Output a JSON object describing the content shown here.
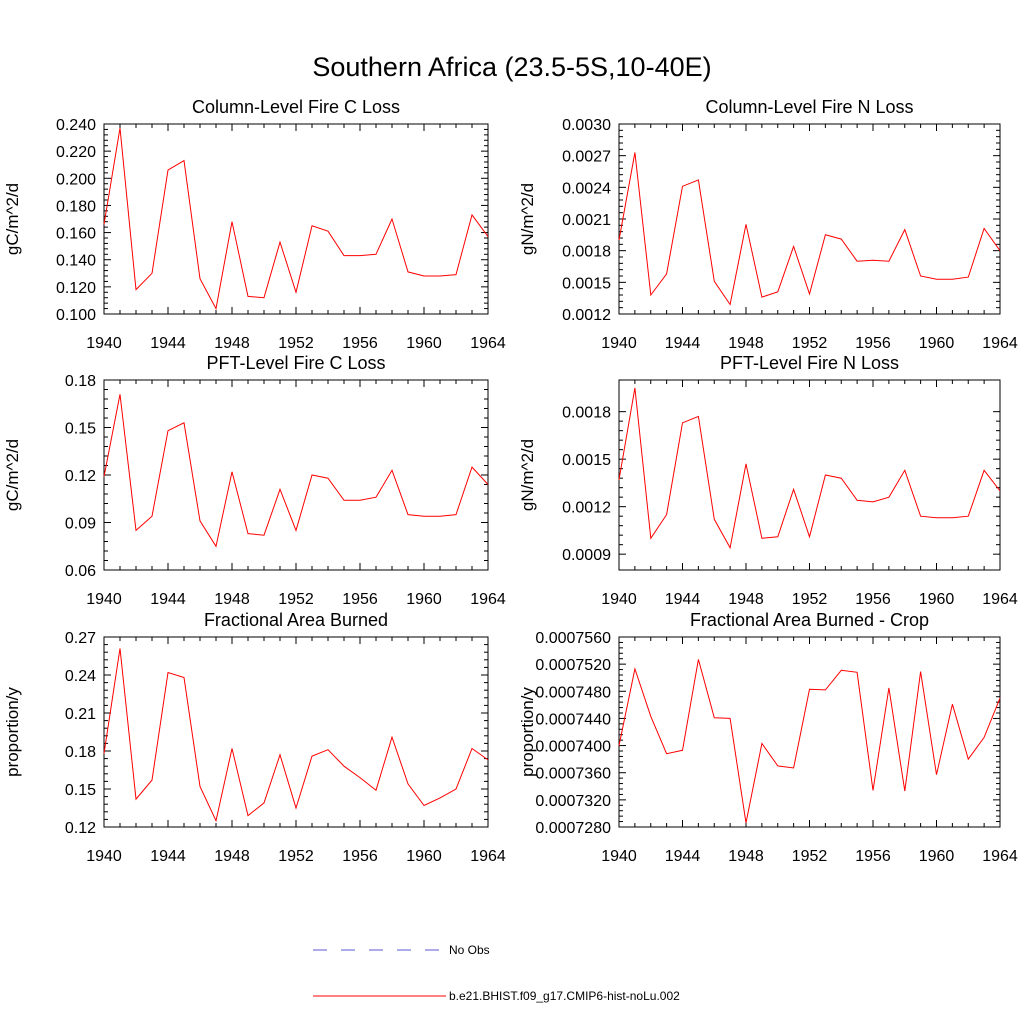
{
  "figure": {
    "title": "Southern Africa (23.5-5S,10-40E)",
    "line_color": "#ff0000",
    "obs_color": "#5a5ad6"
  },
  "legend": [
    {
      "label": "No Obs",
      "style": "dashed",
      "color": "#5a5ad6"
    },
    {
      "label": "b.e21.BHIST.f09_g17.CMIP6-hist-noLu.002",
      "style": "solid",
      "color": "#ff0000"
    }
  ],
  "chart_data": [
    {
      "type": "line",
      "title": "Column-Level Fire C Loss",
      "ylabel": "gC/m^2/d",
      "xlim": [
        1940,
        1964
      ],
      "ylim": [
        0.1,
        0.24
      ],
      "xticks": [
        1940,
        1944,
        1948,
        1952,
        1956,
        1960,
        1964
      ],
      "yticks": [
        0.1,
        0.12,
        0.14,
        0.16,
        0.18,
        0.2,
        0.22,
        0.24
      ],
      "ytick_labels": [
        "0.100",
        "0.120",
        "0.140",
        "0.160",
        "0.180",
        "0.200",
        "0.220",
        "0.240"
      ],
      "xtick_labels": [
        "1940",
        "1944",
        "1948",
        "1952",
        "1956",
        "1960",
        "1964"
      ],
      "x": [
        1940,
        1941,
        1942,
        1943,
        1944,
        1945,
        1946,
        1947,
        1948,
        1949,
        1950,
        1951,
        1952,
        1953,
        1954,
        1955,
        1956,
        1957,
        1958,
        1959,
        1960,
        1961,
        1962,
        1963,
        1964
      ],
      "series": [
        {
          "values": [
            0.166,
            0.237,
            0.118,
            0.13,
            0.206,
            0.213,
            0.126,
            0.104,
            0.168,
            0.113,
            0.112,
            0.153,
            0.116,
            0.165,
            0.161,
            0.143,
            0.143,
            0.144,
            0.17,
            0.131,
            0.128,
            0.128,
            0.129,
            0.173,
            0.157
          ]
        }
      ]
    },
    {
      "type": "line",
      "title": "Column-Level Fire N Loss",
      "ylabel": "gN/m^2/d",
      "xlim": [
        1940,
        1964
      ],
      "ylim": [
        0.0012,
        0.003
      ],
      "xticks": [
        1940,
        1944,
        1948,
        1952,
        1956,
        1960,
        1964
      ],
      "yticks": [
        0.0012,
        0.0015,
        0.0018,
        0.0021,
        0.0024,
        0.0027,
        0.003
      ],
      "ytick_labels": [
        "0.0012",
        "0.0015",
        "0.0018",
        "0.0021",
        "0.0024",
        "0.0027",
        "0.0030"
      ],
      "xtick_labels": [
        "1940",
        "1944",
        "1948",
        "1952",
        "1956",
        "1960",
        "1964"
      ],
      "x": [
        1940,
        1941,
        1942,
        1943,
        1944,
        1945,
        1946,
        1947,
        1948,
        1949,
        1950,
        1951,
        1952,
        1953,
        1954,
        1955,
        1956,
        1957,
        1958,
        1959,
        1960,
        1961,
        1962,
        1963,
        1964
      ],
      "series": [
        {
          "values": [
            0.0019,
            0.00273,
            0.00138,
            0.00158,
            0.00241,
            0.00247,
            0.00151,
            0.00129,
            0.00205,
            0.00136,
            0.00141,
            0.00184,
            0.00139,
            0.00195,
            0.00191,
            0.0017,
            0.00171,
            0.0017,
            0.002,
            0.00156,
            0.00153,
            0.00153,
            0.00155,
            0.00201,
            0.0018
          ]
        }
      ]
    },
    {
      "type": "line",
      "title": "PFT-Level Fire C Loss",
      "ylabel": "gC/m^2/d",
      "xlim": [
        1940,
        1964
      ],
      "ylim": [
        0.06,
        0.18
      ],
      "xticks": [
        1940,
        1944,
        1948,
        1952,
        1956,
        1960,
        1964
      ],
      "yticks": [
        0.06,
        0.09,
        0.12,
        0.15,
        0.18
      ],
      "ytick_labels": [
        "0.06",
        "0.09",
        "0.12",
        "0.15",
        "0.18"
      ],
      "xtick_labels": [
        "1940",
        "1944",
        "1948",
        "1952",
        "1956",
        "1960",
        "1964"
      ],
      "x": [
        1940,
        1941,
        1942,
        1943,
        1944,
        1945,
        1946,
        1947,
        1948,
        1949,
        1950,
        1951,
        1952,
        1953,
        1954,
        1955,
        1956,
        1957,
        1958,
        1959,
        1960,
        1961,
        1962,
        1963,
        1964
      ],
      "series": [
        {
          "values": [
            0.119,
            0.171,
            0.085,
            0.094,
            0.148,
            0.153,
            0.091,
            0.075,
            0.122,
            0.083,
            0.082,
            0.111,
            0.085,
            0.12,
            0.118,
            0.104,
            0.104,
            0.106,
            0.123,
            0.095,
            0.094,
            0.094,
            0.095,
            0.125,
            0.114
          ]
        }
      ]
    },
    {
      "type": "line",
      "title": "PFT-Level Fire N Loss",
      "ylabel": "gN/m^2/d",
      "xlim": [
        1940,
        1964
      ],
      "ylim": [
        0.0008,
        0.002
      ],
      "xticks": [
        1940,
        1944,
        1948,
        1952,
        1956,
        1960,
        1964
      ],
      "yticks": [
        0.0009,
        0.0012,
        0.0015,
        0.0018
      ],
      "ytick_labels": [
        "0.0009",
        "0.0012",
        "0.0015",
        "0.0018"
      ],
      "xtick_labels": [
        "1940",
        "1944",
        "1948",
        "1952",
        "1956",
        "1960",
        "1964"
      ],
      "x": [
        1940,
        1941,
        1942,
        1943,
        1944,
        1945,
        1946,
        1947,
        1948,
        1949,
        1950,
        1951,
        1952,
        1953,
        1954,
        1955,
        1956,
        1957,
        1958,
        1959,
        1960,
        1961,
        1962,
        1963,
        1964
      ],
      "series": [
        {
          "values": [
            0.00137,
            0.00195,
            0.001,
            0.00115,
            0.00173,
            0.00177,
            0.00112,
            0.00094,
            0.00147,
            0.001,
            0.00101,
            0.00131,
            0.00101,
            0.0014,
            0.00138,
            0.00124,
            0.00123,
            0.00126,
            0.00143,
            0.00114,
            0.00113,
            0.00113,
            0.00114,
            0.00143,
            0.0013
          ]
        }
      ]
    },
    {
      "type": "line",
      "title": "Fractional Area Burned",
      "ylabel": "proportion/y",
      "xlim": [
        1940,
        1964
      ],
      "ylim": [
        0.12,
        0.27
      ],
      "xticks": [
        1940,
        1944,
        1948,
        1952,
        1956,
        1960,
        1964
      ],
      "yticks": [
        0.12,
        0.15,
        0.18,
        0.21,
        0.24,
        0.27
      ],
      "ytick_labels": [
        "0.12",
        "0.15",
        "0.18",
        "0.21",
        "0.24",
        "0.27"
      ],
      "xtick_labels": [
        "1940",
        "1944",
        "1948",
        "1952",
        "1956",
        "1960",
        "1964"
      ],
      "x": [
        1940,
        1941,
        1942,
        1943,
        1944,
        1945,
        1946,
        1947,
        1948,
        1949,
        1950,
        1951,
        1952,
        1953,
        1954,
        1955,
        1956,
        1957,
        1958,
        1959,
        1960,
        1961,
        1962,
        1963,
        1964
      ],
      "series": [
        {
          "values": [
            0.178,
            0.261,
            0.142,
            0.157,
            0.242,
            0.238,
            0.152,
            0.125,
            0.182,
            0.129,
            0.139,
            0.177,
            0.135,
            0.176,
            0.181,
            0.168,
            0.159,
            0.149,
            0.191,
            0.154,
            0.137,
            0.143,
            0.15,
            0.182,
            0.173
          ]
        }
      ]
    },
    {
      "type": "line",
      "title": "Fractional Area Burned - Crop",
      "ylabel": "proportion/y",
      "xlim": [
        1940,
        1964
      ],
      "ylim": [
        0.000728,
        0.000756
      ],
      "xticks": [
        1940,
        1944,
        1948,
        1952,
        1956,
        1960,
        1964
      ],
      "yticks": [
        0.000728,
        0.000732,
        0.000736,
        0.00074,
        0.000744,
        0.000748,
        0.000752,
        0.000756
      ],
      "ytick_labels": [
        "0.0007280",
        "0.0007320",
        "0.0007360",
        "0.0007400",
        "0.0007440",
        "0.0007480",
        "0.0007520",
        "0.0007560"
      ],
      "xtick_labels": [
        "1940",
        "1944",
        "1948",
        "1952",
        "1956",
        "1960",
        "1964"
      ],
      "x": [
        1940,
        1941,
        1942,
        1943,
        1944,
        1945,
        1946,
        1947,
        1948,
        1949,
        1950,
        1951,
        1952,
        1953,
        1954,
        1955,
        1956,
        1957,
        1958,
        1959,
        1960,
        1961,
        1962,
        1963,
        1964
      ],
      "series": [
        {
          "values": [
            0.00074,
            0.0007513,
            0.0007443,
            0.0007388,
            0.0007393,
            0.0007527,
            0.0007441,
            0.000744,
            0.0007286,
            0.0007403,
            0.000737,
            0.0007367,
            0.0007483,
            0.0007482,
            0.0007511,
            0.0007508,
            0.0007334,
            0.0007485,
            0.0007333,
            0.0007509,
            0.0007357,
            0.0007461,
            0.000738,
            0.0007412,
            0.000747
          ]
        }
      ]
    }
  ]
}
